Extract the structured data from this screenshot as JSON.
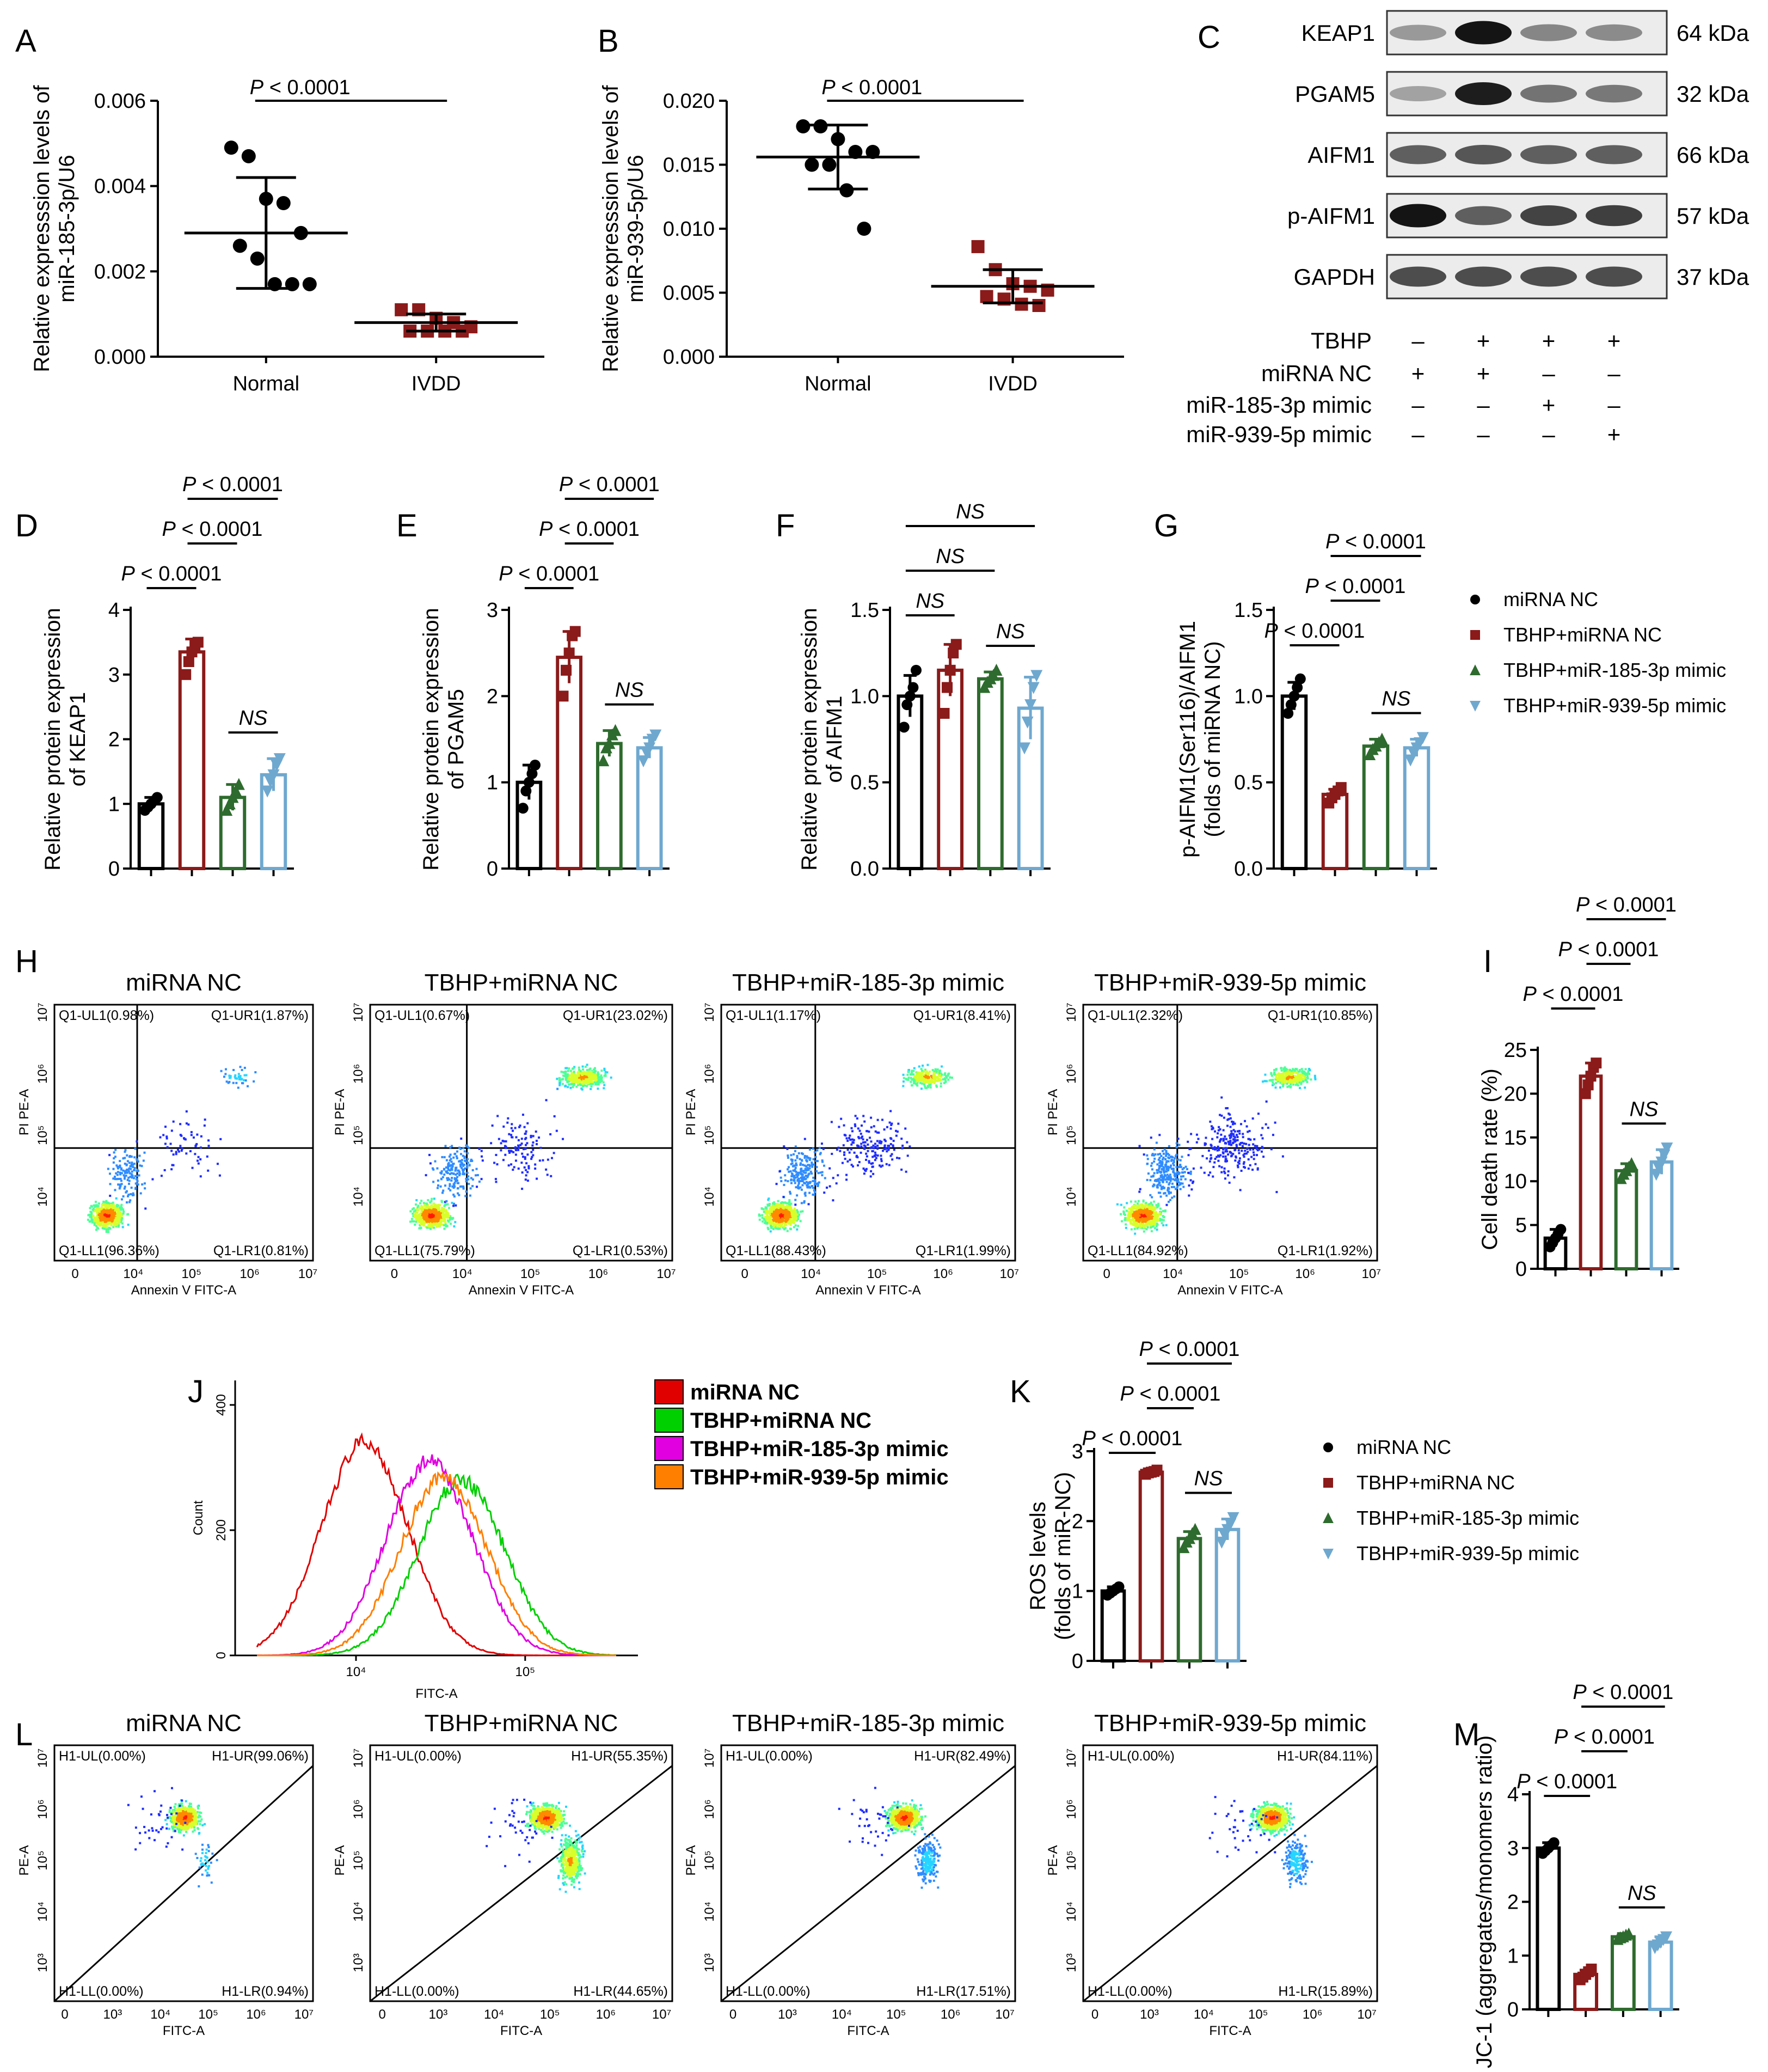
{
  "figure_title": "",
  "colors": {
    "miRNA NC": "#000000",
    "TBHP+miRNA NC": "#8b1a1a",
    "TBHP+miR-185-3p mimic": "#2e6b2e",
    "TBHP+miR-939-5p mimic": "#6fa8cf",
    "normal": "#000000",
    "ivdd": "#8b1a1a"
  },
  "chart_data": [
    {
      "panel": "A",
      "type": "scatter",
      "ylabel": "Relative expresssion levels of miR-185-3p/U6",
      "yticks": [
        "0.000",
        "0.002",
        "0.004",
        "0.006"
      ],
      "ylim": [
        0,
        0.006
      ],
      "categories": [
        "Normal",
        "IVDD"
      ],
      "series": [
        {
          "name": "Normal",
          "points": [
            0.0049,
            0.0047,
            0.0037,
            0.0036,
            0.0029,
            0.0026,
            0.0023,
            0.0017,
            0.0017,
            0.0017
          ],
          "mean": 0.0029,
          "sd": 0.0013
        },
        {
          "name": "IVDD",
          "points": [
            0.0011,
            0.0011,
            0.0009,
            0.0008,
            0.0007,
            0.0006,
            0.0006,
            0.0006,
            0.0006
          ],
          "mean": 0.0008,
          "sd": 0.0002
        }
      ],
      "annotations": [
        {
          "text": "P < 0.0001",
          "groups": [
            0,
            1
          ]
        }
      ]
    },
    {
      "panel": "B",
      "type": "scatter",
      "ylabel": "Relative expresssion levels of miR-939-5p/U6",
      "yticks": [
        "0.000",
        "0.005",
        "0.010",
        "0.015",
        "0.020"
      ],
      "ylim": [
        0,
        0.02
      ],
      "categories": [
        "Normal",
        "IVDD"
      ],
      "series": [
        {
          "name": "Normal",
          "points": [
            0.018,
            0.018,
            0.017,
            0.016,
            0.016,
            0.015,
            0.015,
            0.013,
            0.01
          ],
          "mean": 0.0156,
          "sd": 0.0025
        },
        {
          "name": "IVDD",
          "points": [
            0.0086,
            0.0068,
            0.0057,
            0.0055,
            0.0052,
            0.0047,
            0.0045,
            0.0041,
            0.004
          ],
          "mean": 0.0055,
          "sd": 0.0013
        }
      ],
      "annotations": [
        {
          "text": "P < 0.0001",
          "groups": [
            0,
            1
          ]
        }
      ]
    },
    {
      "panel": "D",
      "type": "bar",
      "ylabel": "Relative protein expression of KEAP1",
      "yticks": [
        "0",
        "1",
        "2",
        "3",
        "4"
      ],
      "ylim": [
        0,
        4
      ],
      "categories": [
        "miRNA NC",
        "TBHP+miRNA NC",
        "TBHP+miR-185-3p mimic",
        "TBHP+miR-939-5p mimic"
      ],
      "values": [
        1.0,
        3.35,
        1.1,
        1.45
      ],
      "errors": [
        0.1,
        0.2,
        0.2,
        0.25
      ],
      "points": [
        [
          0.9,
          0.95,
          1.0,
          1.05,
          1.1
        ],
        [
          3.0,
          3.2,
          3.35,
          3.45,
          3.5
        ],
        [
          0.9,
          1.0,
          1.1,
          1.2,
          1.3
        ],
        [
          1.2,
          1.35,
          1.45,
          1.6,
          1.7
        ]
      ],
      "annotations": [
        {
          "text": "P < 0.0001",
          "groups": [
            0,
            1
          ],
          "level": 0
        },
        {
          "text": "P < 0.0001",
          "groups": [
            1,
            2
          ],
          "level": 1
        },
        {
          "text": "P < 0.0001",
          "groups": [
            1,
            3
          ],
          "level": 2
        },
        {
          "text": "NS",
          "groups": [
            2,
            3
          ],
          "level": -1
        }
      ]
    },
    {
      "panel": "E",
      "type": "bar",
      "ylabel": "Relative protein expression of PGAM5",
      "yticks": [
        "0",
        "1",
        "2",
        "3"
      ],
      "ylim": [
        0,
        3
      ],
      "categories": [
        "miRNA NC",
        "TBHP+miRNA NC",
        "TBHP+miR-185-3p mimic",
        "TBHP+miR-939-5p mimic"
      ],
      "values": [
        1.0,
        2.45,
        1.45,
        1.4
      ],
      "errors": [
        0.2,
        0.3,
        0.15,
        0.12
      ],
      "points": [
        [
          0.7,
          0.9,
          1.0,
          1.1,
          1.2
        ],
        [
          2.0,
          2.3,
          2.5,
          2.7,
          2.75
        ],
        [
          1.25,
          1.4,
          1.45,
          1.55,
          1.6
        ],
        [
          1.25,
          1.35,
          1.4,
          1.5,
          1.55
        ]
      ],
      "annotations": [
        {
          "text": "P < 0.0001",
          "groups": [
            0,
            1
          ],
          "level": 0
        },
        {
          "text": "P < 0.0001",
          "groups": [
            1,
            2
          ],
          "level": 1
        },
        {
          "text": "P < 0.0001",
          "groups": [
            1,
            3
          ],
          "level": 2
        },
        {
          "text": "NS",
          "groups": [
            2,
            3
          ],
          "level": -1
        }
      ]
    },
    {
      "panel": "F",
      "type": "bar",
      "ylabel": "Relative protein expression of AIFM1",
      "yticks": [
        "0.0",
        "0.5",
        "1.0",
        "1.5"
      ],
      "ylim": [
        0,
        1.5
      ],
      "categories": [
        "miRNA NC",
        "TBHP+miRNA NC",
        "TBHP+miR-185-3p mimic",
        "TBHP+miR-939-5p mimic"
      ],
      "values": [
        1.0,
        1.15,
        1.1,
        0.93
      ],
      "errors": [
        0.12,
        0.15,
        0.04,
        0.18
      ],
      "points": [
        [
          0.82,
          0.95,
          1.0,
          1.05,
          1.15
        ],
        [
          0.9,
          1.05,
          1.15,
          1.25,
          1.3
        ],
        [
          1.05,
          1.08,
          1.1,
          1.12,
          1.15
        ],
        [
          0.7,
          0.85,
          0.95,
          1.05,
          1.12
        ]
      ],
      "annotations": [
        {
          "text": "NS",
          "groups": [
            0,
            1
          ],
          "level": 0
        },
        {
          "text": "NS",
          "groups": [
            0,
            2
          ],
          "level": 1
        },
        {
          "text": "NS",
          "groups": [
            0,
            3
          ],
          "level": 2
        },
        {
          "text": "NS",
          "groups": [
            2,
            3
          ],
          "level": -1
        }
      ]
    },
    {
      "panel": "G",
      "type": "bar",
      "ylabel": "p-AIFM1(Ser116)/AIFM1 (folds of miRNA NC)",
      "yticks": [
        "0.0",
        "0.5",
        "1.0",
        "1.5"
      ],
      "ylim": [
        0,
        1.5
      ],
      "categories": [
        "miRNA NC",
        "TBHP+miRNA NC",
        "TBHP+miR-185-3p mimic",
        "TBHP+miR-939-5p mimic"
      ],
      "values": [
        1.0,
        0.43,
        0.71,
        0.7
      ],
      "errors": [
        0.08,
        0.03,
        0.04,
        0.05
      ],
      "points": [
        [
          0.9,
          0.95,
          1.0,
          1.05,
          1.1
        ],
        [
          0.38,
          0.41,
          0.43,
          0.45,
          0.47
        ],
        [
          0.66,
          0.69,
          0.71,
          0.73,
          0.75
        ],
        [
          0.63,
          0.67,
          0.7,
          0.73,
          0.76
        ]
      ],
      "annotations": [
        {
          "text": "P < 0.0001",
          "groups": [
            0,
            1
          ],
          "level": 0
        },
        {
          "text": "P < 0.0001",
          "groups": [
            1,
            2
          ],
          "level": 1
        },
        {
          "text": "P < 0.0001",
          "groups": [
            1,
            3
          ],
          "level": 2
        },
        {
          "text": "NS",
          "groups": [
            2,
            3
          ],
          "level": -1
        }
      ]
    },
    {
      "panel": "I",
      "type": "bar",
      "ylabel": "Cell death rate (%)",
      "yticks": [
        "0",
        "5",
        "10",
        "15",
        "20",
        "25"
      ],
      "ylim": [
        0,
        25
      ],
      "categories": [
        "miRNA NC",
        "TBHP+miRNA NC",
        "TBHP+miR-185-3p mimic",
        "TBHP+miR-939-5p mimic"
      ],
      "values": [
        3.5,
        22.0,
        11.2,
        12.2
      ],
      "errors": [
        1.0,
        1.5,
        0.8,
        1.4
      ],
      "points": [
        [
          2.5,
          3.0,
          3.5,
          4.0,
          4.5
        ],
        [
          20.0,
          21.0,
          22.0,
          23.0,
          23.5
        ],
        [
          10.3,
          10.8,
          11.2,
          11.6,
          12.0
        ],
        [
          10.8,
          11.5,
          12.2,
          13.0,
          13.8
        ]
      ],
      "annotations": [
        {
          "text": "P < 0.0001",
          "groups": [
            0,
            1
          ],
          "level": 0
        },
        {
          "text": "P < 0.0001",
          "groups": [
            1,
            2
          ],
          "level": 1
        },
        {
          "text": "P < 0.0001",
          "groups": [
            1,
            3
          ],
          "level": 2
        },
        {
          "text": "NS",
          "groups": [
            2,
            3
          ],
          "level": -1
        }
      ]
    },
    {
      "panel": "K",
      "type": "bar",
      "ylabel": "ROS levels (folds of miR-NC)",
      "yticks": [
        "0",
        "1",
        "2",
        "3"
      ],
      "ylim": [
        0,
        3
      ],
      "categories": [
        "miRNA NC",
        "TBHP+miRNA NC",
        "TBHP+miR-185-3p mimic",
        "TBHP+miR-939-5p mimic"
      ],
      "values": [
        1.0,
        2.7,
        1.75,
        1.88
      ],
      "errors": [
        0.06,
        0.03,
        0.1,
        0.15
      ],
      "points": [
        [
          0.94,
          0.97,
          1.0,
          1.03,
          1.06
        ],
        [
          2.67,
          2.69,
          2.7,
          2.71,
          2.73
        ],
        [
          1.62,
          1.7,
          1.75,
          1.82,
          1.88
        ],
        [
          1.7,
          1.8,
          1.88,
          1.96,
          2.05
        ]
      ],
      "annotations": [
        {
          "text": "P < 0.0001",
          "groups": [
            0,
            1
          ],
          "level": 0
        },
        {
          "text": "P < 0.0001",
          "groups": [
            1,
            2
          ],
          "level": 1
        },
        {
          "text": "P < 0.0001",
          "groups": [
            1,
            3
          ],
          "level": 2
        },
        {
          "text": "NS",
          "groups": [
            2,
            3
          ],
          "level": -1
        }
      ]
    },
    {
      "panel": "M",
      "type": "bar",
      "ylabel": "JC-1 (aggregates/monomers ratio)",
      "yticks": [
        "0",
        "1",
        "2",
        "3",
        "4"
      ],
      "ylim": [
        0,
        4
      ],
      "categories": [
        "miRNA NC",
        "TBHP+miRNA NC",
        "TBHP+miR-185-3p mimic",
        "TBHP+miR-939-5p mimic"
      ],
      "values": [
        3.0,
        0.65,
        1.35,
        1.25
      ],
      "errors": [
        0.1,
        0.08,
        0.06,
        0.1
      ],
      "points": [
        [
          2.9,
          2.95,
          3.0,
          3.05,
          3.1
        ],
        [
          0.55,
          0.6,
          0.65,
          0.7,
          0.75
        ],
        [
          1.3,
          1.33,
          1.35,
          1.38,
          1.4
        ],
        [
          1.15,
          1.2,
          1.25,
          1.3,
          1.35
        ]
      ],
      "annotations": [
        {
          "text": "P < 0.0001",
          "groups": [
            0,
            1
          ],
          "level": 0
        },
        {
          "text": "P < 0.0001",
          "groups": [
            1,
            2
          ],
          "level": 1
        },
        {
          "text": "P < 0.0001",
          "groups": [
            1,
            3
          ],
          "level": 2
        },
        {
          "text": "NS",
          "groups": [
            2,
            3
          ],
          "level": -1
        }
      ]
    },
    {
      "panel": "J",
      "type": "line",
      "xlabel": "FITC-A",
      "ylabel": "Count",
      "yticks": [
        "0",
        "200",
        "400"
      ],
      "ylim": [
        0,
        400
      ],
      "xticks": [
        "10^4",
        "10^5"
      ],
      "series": [
        {
          "name": "miRNA NC",
          "color": "#e00000",
          "peak": 340,
          "center": 0.3
        },
        {
          "name": "TBHP+miRNA NC",
          "color": "#00d000",
          "peak": 280,
          "center": 0.57
        },
        {
          "name": "TBHP+miR-185-3p mimic",
          "color": "#e000e0",
          "peak": 310,
          "center": 0.48
        },
        {
          "name": "TBHP+miR-939-5p mimic",
          "color": "#ff7f00",
          "peak": 285,
          "center": 0.52
        }
      ]
    }
  ],
  "panel_labels": {
    "A": "A",
    "B": "B",
    "C": "C",
    "D": "D",
    "E": "E",
    "F": "F",
    "G": "G",
    "H": "H",
    "I": "I",
    "J": "J",
    "K": "K",
    "L": "L",
    "M": "M"
  },
  "western_blot": {
    "proteins": [
      {
        "name": "KEAP1",
        "kda": "64 kDa"
      },
      {
        "name": "PGAM5",
        "kda": "32 kDa"
      },
      {
        "name": "AIFM1",
        "kda": "66 kDa"
      },
      {
        "name": "p-AIFM1",
        "kda": "57 kDa"
      },
      {
        "name": "GAPDH",
        "kda": "37 kDa"
      }
    ],
    "conditions": [
      {
        "label": "TBHP",
        "signs": [
          "–",
          "+",
          "+",
          "+"
        ]
      },
      {
        "label": "miRNA NC",
        "signs": [
          "+",
          "+",
          "–",
          "–"
        ]
      },
      {
        "label": "miR-185-3p mimic",
        "signs": [
          "–",
          "–",
          "+",
          "–"
        ]
      },
      {
        "label": "miR-939-5p mimic",
        "signs": [
          "–",
          "–",
          "–",
          "+"
        ]
      }
    ]
  },
  "legend_groups": [
    "miRNA NC",
    "TBHP+miRNA NC",
    "TBHP+miR-185-3p mimic",
    "TBHP+miR-939-5p mimic"
  ],
  "flow_H": {
    "xlabel": "Annexin V FITC-A",
    "ylabel": "PI PE-A",
    "panels": [
      {
        "title": "miRNA NC",
        "ul": "Q1-UL1(0.98%)",
        "ur": "Q1-UR1(1.87%)",
        "ll": "Q1-LL1(96.36%)",
        "lr": "Q1-LR1(0.81%)"
      },
      {
        "title": "TBHP+miRNA NC",
        "ul": "Q1-UL1(0.67%)",
        "ur": "Q1-UR1(23.02%)",
        "ll": "Q1-LL1(75.79%)",
        "lr": "Q1-LR1(0.53%)"
      },
      {
        "title": "TBHP+miR-185-3p mimic",
        "ul": "Q1-UL1(1.17%)",
        "ur": "Q1-UR1(8.41%)",
        "ll": "Q1-LL1(88.43%)",
        "lr": "Q1-LR1(1.99%)"
      },
      {
        "title": "TBHP+miR-939-5p mimic",
        "ul": "Q1-UL1(2.32%)",
        "ur": "Q1-UR1(10.85%)",
        "ll": "Q1-LL1(84.92%)",
        "lr": "Q1-LR1(1.92%)"
      }
    ]
  },
  "flow_L": {
    "xlabel": "FITC-A",
    "ylabel": "PE-A",
    "panels": [
      {
        "title": "miRNA NC",
        "ul": "H1-UL(0.00%)",
        "ur": "H1-UR(99.06%)",
        "ll": "H1-LL(0.00%)",
        "lr": "H1-LR(0.94%)"
      },
      {
        "title": "TBHP+miRNA NC",
        "ul": "H1-UL(0.00%)",
        "ur": "H1-UR(55.35%)",
        "ll": "H1-LL(0.00%)",
        "lr": "H1-LR(44.65%)"
      },
      {
        "title": "TBHP+miR-185-3p mimic",
        "ul": "H1-UL(0.00%)",
        "ur": "H1-UR(82.49%)",
        "ll": "H1-LL(0.00%)",
        "lr": "H1-LR(17.51%)"
      },
      {
        "title": "TBHP+miR-939-5p mimic",
        "ul": "H1-UL(0.00%)",
        "ur": "H1-UR(84.11%)",
        "ll": "H1-LL(0.00%)",
        "lr": "H1-LR(15.89%)"
      }
    ]
  }
}
